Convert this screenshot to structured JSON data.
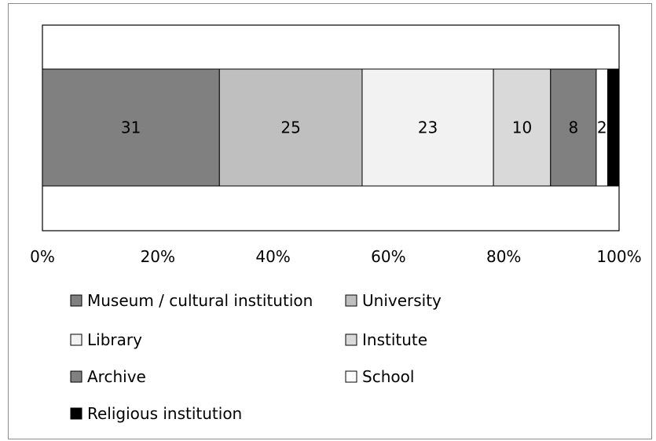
{
  "chart_data": {
    "type": "bar",
    "orientation": "horizontal",
    "stacked": "percent",
    "categories": [
      ""
    ],
    "xlim": [
      0,
      100
    ],
    "x_ticks": [
      "0%",
      "20%",
      "40%",
      "60%",
      "80%",
      "100%"
    ],
    "grid": false,
    "legend_position": "bottom",
    "series": [
      {
        "name": "Museum / cultural institution",
        "values": [
          31
        ],
        "color": "#808080"
      },
      {
        "name": "University",
        "values": [
          25
        ],
        "color": "#bfbfbf"
      },
      {
        "name": "Library",
        "values": [
          23
        ],
        "color": "#f2f2f2"
      },
      {
        "name": "Institute",
        "values": [
          10
        ],
        "color": "#d9d9d9"
      },
      {
        "name": "Archive",
        "values": [
          8
        ],
        "color": "#808080"
      },
      {
        "name": "School",
        "values": [
          2
        ],
        "color": "#ffffff"
      },
      {
        "name": "Religious institution",
        "values": [
          2
        ],
        "color": "#000000"
      }
    ]
  }
}
